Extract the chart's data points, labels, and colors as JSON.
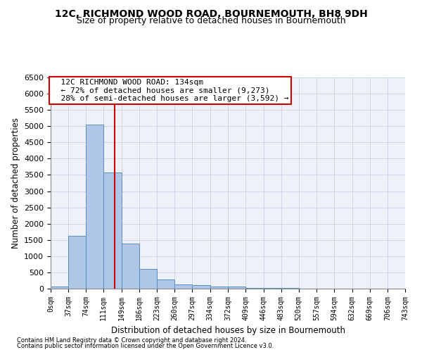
{
  "title1": "12C, RICHMOND WOOD ROAD, BOURNEMOUTH, BH8 9DH",
  "title2": "Size of property relative to detached houses in Bournemouth",
  "xlabel": "Distribution of detached houses by size in Bournemouth",
  "ylabel": "Number of detached properties",
  "footnote1": "Contains HM Land Registry data © Crown copyright and database right 2024.",
  "footnote2": "Contains public sector information licensed under the Open Government Licence v3.0.",
  "annotation_line1": "12C RICHMOND WOOD ROAD: 134sqm",
  "annotation_line2": "← 72% of detached houses are smaller (9,273)",
  "annotation_line3": "28% of semi-detached houses are larger (3,592) →",
  "property_size": 134,
  "bar_edges": [
    0,
    37,
    74,
    111,
    149,
    186,
    223,
    260,
    297,
    334,
    372,
    409,
    446,
    483,
    520,
    557,
    594,
    632,
    669,
    706,
    743
  ],
  "bar_heights": [
    70,
    1620,
    5050,
    3580,
    1390,
    610,
    290,
    140,
    100,
    70,
    60,
    30,
    20,
    15,
    10,
    8,
    5,
    5,
    3,
    2
  ],
  "bar_color": "#aec6e8",
  "bar_edge_color": "#5a8fc0",
  "vline_color": "#cc0000",
  "annotation_box_edge_color": "#cc0000",
  "grid_color": "#c8d8ea",
  "background_color": "#eef2f8",
  "ylim": [
    0,
    6500
  ],
  "yticks": [
    0,
    500,
    1000,
    1500,
    2000,
    2500,
    3000,
    3500,
    4000,
    4500,
    5000,
    5500,
    6000,
    6500
  ]
}
